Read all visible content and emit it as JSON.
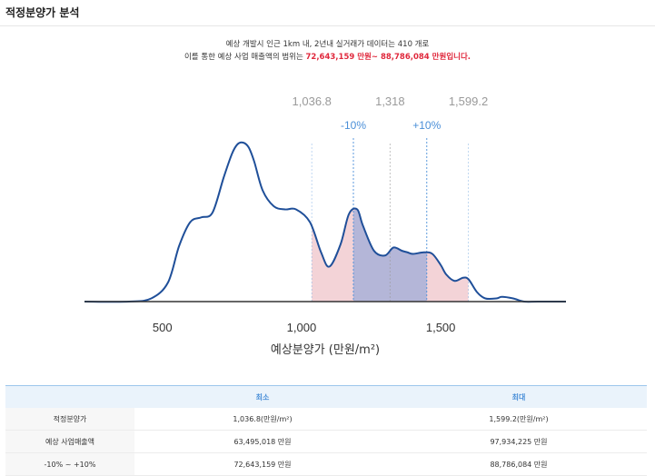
{
  "header": {
    "title": "적정분양가 분석"
  },
  "description": {
    "line1": "예상 개발시 인근 1km 내, 2년내 실거래가 데이터는 410 개로",
    "line2_prefix": "이를 통한 예상 사업 매출액의 범위는 ",
    "line2_range": "72,643,159 만원~ 88,786,084 만원입니다."
  },
  "chart_data": {
    "type": "area",
    "xlabel": "예상분양가 (만원/m²)",
    "xlim": [
      220,
      1950
    ],
    "x_ticks": [
      500,
      1000,
      1500
    ],
    "x_tick_labels": [
      "500",
      "1,000",
      "1,500"
    ],
    "grid": false,
    "density": {
      "x": [
        220,
        380,
        460,
        520,
        560,
        600,
        640,
        680,
        720,
        750,
        770,
        790,
        810,
        830,
        860,
        900,
        940,
        980,
        1030,
        1070,
        1100,
        1140,
        1170,
        1200,
        1220,
        1260,
        1300,
        1330,
        1360,
        1380,
        1400,
        1440,
        1470,
        1500,
        1520,
        1550,
        1580,
        1600,
        1630,
        1660,
        1700,
        1720,
        1760,
        1800,
        1850,
        1950
      ],
      "y": [
        0,
        0,
        0.02,
        0.12,
        0.35,
        0.5,
        0.53,
        0.56,
        0.78,
        0.93,
        0.99,
        1.0,
        0.97,
        0.88,
        0.7,
        0.6,
        0.58,
        0.58,
        0.5,
        0.31,
        0.22,
        0.36,
        0.55,
        0.58,
        0.48,
        0.32,
        0.29,
        0.34,
        0.32,
        0.31,
        0.3,
        0.31,
        0.3,
        0.23,
        0.17,
        0.13,
        0.15,
        0.14,
        0.06,
        0.02,
        0.02,
        0.03,
        0.02,
        0.0,
        0.0,
        0.0
      ]
    },
    "markers": {
      "min": {
        "x": 1036.8,
        "label": "1,036.8"
      },
      "minus10": {
        "x": 1186.2,
        "label": "-10%"
      },
      "center": {
        "x": 1318,
        "label": "1,318"
      },
      "plus10": {
        "x": 1449.8,
        "label": "+10%"
      },
      "max": {
        "x": 1599.2,
        "label": "1,599.2"
      }
    },
    "colors": {
      "line": "#1f4f99",
      "outer_fill": "#efc4ca",
      "inner_fill": "#a8b0d8",
      "marker_gray": "#9a9a9a",
      "marker_blue": "#4a8fd8"
    }
  },
  "table": {
    "headers": [
      "",
      "최소",
      "최대"
    ],
    "rows": [
      [
        "적정분양가",
        "1,036.8(만원/m²)",
        "1,599.2(만원/m²)"
      ],
      [
        "예상 사업매출액",
        "63,495,018 만원",
        "97,934,225 만원"
      ],
      [
        "-10% ~ +10%",
        "72,643,159 만원",
        "88,786,084 만원"
      ]
    ]
  }
}
